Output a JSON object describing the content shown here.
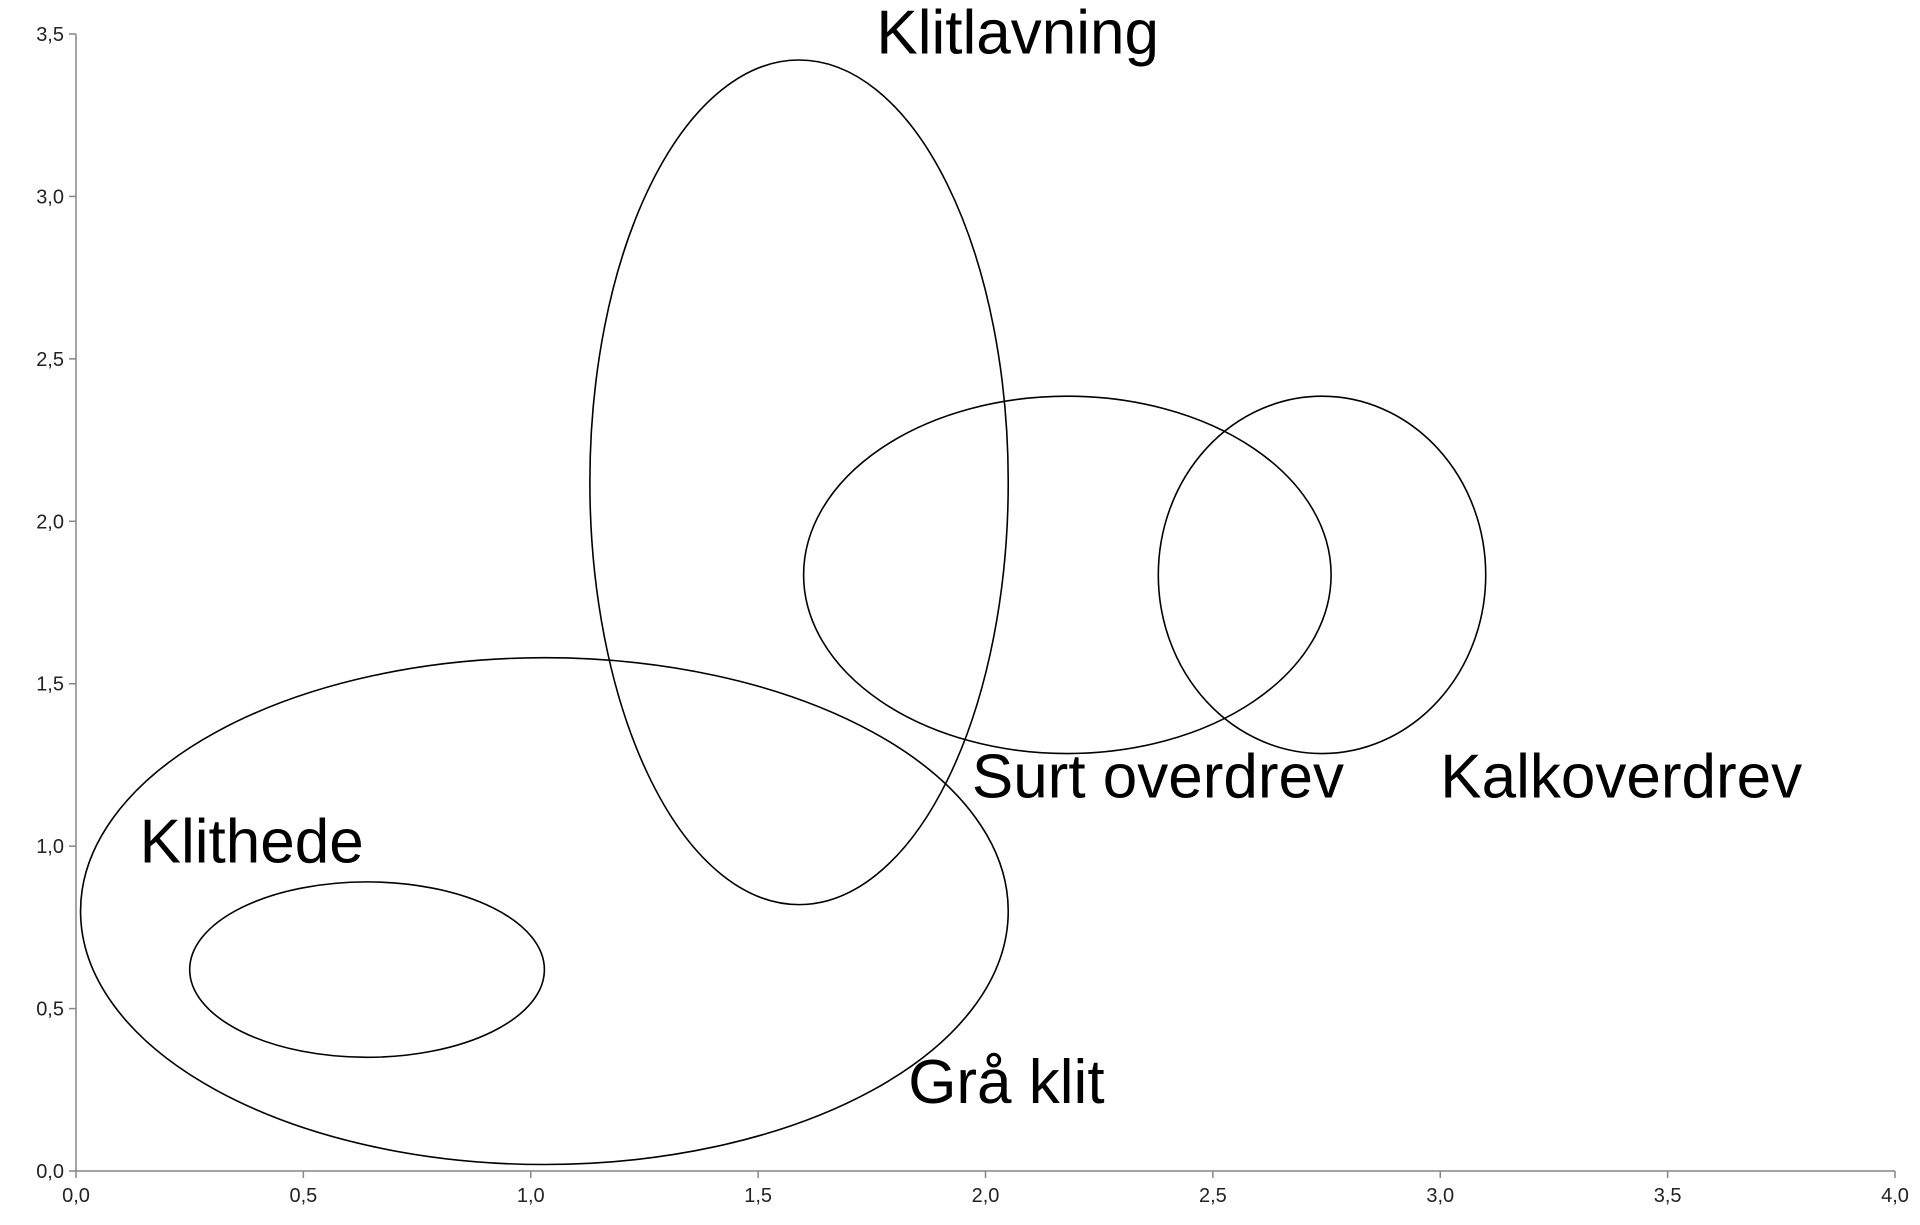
{
  "chart_data": {
    "type": "ellipse",
    "xlim": [
      0,
      4
    ],
    "ylim": [
      0,
      3.5
    ],
    "xticks": [
      {
        "value": 0,
        "label": "0,0"
      },
      {
        "value": 0.5,
        "label": "0,5"
      },
      {
        "value": 1,
        "label": "1,0"
      },
      {
        "value": 1.5,
        "label": "1,5"
      },
      {
        "value": 2,
        "label": "2,0"
      },
      {
        "value": 2.5,
        "label": "2,5"
      },
      {
        "value": 3,
        "label": "3,0"
      },
      {
        "value": 3.5,
        "label": "3,5"
      },
      {
        "value": 4,
        "label": "4,0"
      }
    ],
    "yticks": [
      {
        "value": 0,
        "label": "0,0"
      },
      {
        "value": 0.5,
        "label": "0,5"
      },
      {
        "value": 1,
        "label": "1,0"
      },
      {
        "value": 1.5,
        "label": "1,5"
      },
      {
        "value": 2,
        "label": "2,0"
      },
      {
        "value": 2.5,
        "label": "2,5"
      },
      {
        "value": 3,
        "label": "3,0"
      },
      {
        "value": 3.5,
        "label": "3,5"
      }
    ],
    "color": "#000000",
    "ellipses": [
      {
        "cx": 1.59,
        "cy": 2.12,
        "rx": 0.46,
        "ry": 1.3
      },
      {
        "cx": 2.18,
        "cy": 1.835,
        "rx": 0.58,
        "ry": 0.55
      },
      {
        "cx": 2.74,
        "cy": 1.835,
        "rx": 0.36,
        "ry": 0.55
      },
      {
        "cx": 1.03,
        "cy": 0.8,
        "rx": 1.02,
        "ry": 0.78
      },
      {
        "cx": 0.64,
        "cy": 0.62,
        "rx": 0.39,
        "ry": 0.27
      }
    ],
    "annotations": [
      {
        "text": "Klitlavning",
        "x": 1.76,
        "y": 3.44
      },
      {
        "text": "Surt overdrev",
        "x": 1.97,
        "y": 1.15
      },
      {
        "text": "Kalkoverdrev",
        "x": 3.0,
        "y": 1.15
      },
      {
        "text": "Klithede",
        "x": 0.14,
        "y": 0.95
      },
      {
        "text": "Grå klit",
        "x": 1.83,
        "y": 0.21
      }
    ]
  }
}
